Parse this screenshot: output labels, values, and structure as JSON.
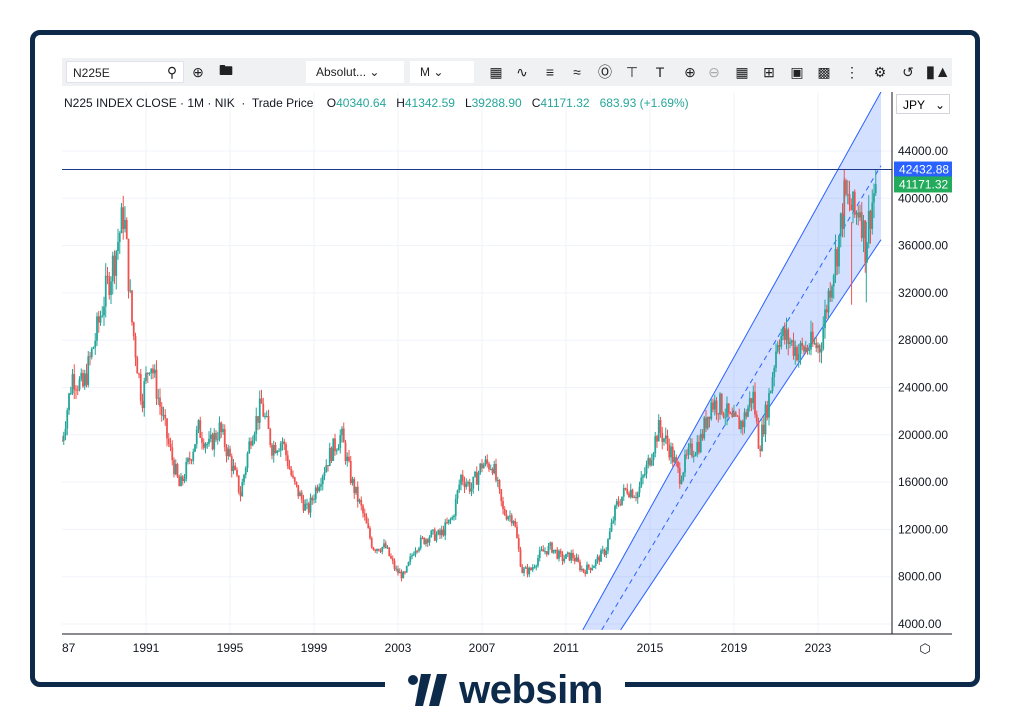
{
  "toolbar": {
    "symbol": "N225E",
    "scale_mode": "Absolut...",
    "interval": "M"
  },
  "legend": {
    "title": "N225 INDEX CLOSE · 1M · NIK",
    "price_type": "Trade Price",
    "o_label": "O",
    "o_value": "40340.64",
    "h_label": "H",
    "h_value": "41342.59",
    "l_label": "L",
    "l_value": "39288.90",
    "c_label": "C",
    "c_value": "41171.32",
    "change": "683.93 (+1.69%)"
  },
  "currency": "JPY",
  "brand": {
    "name": "websim"
  },
  "colors": {
    "up": "#26a69a",
    "down": "#ef5350",
    "channel": "#2962ff",
    "hline": "#1e3a8a",
    "badge_blue": "#2962ff",
    "badge_green": "#22ab5a",
    "frame": "#0d2a4a"
  },
  "chart_data": {
    "type": "candlestick",
    "x_ticks": [
      "87",
      "1991",
      "1995",
      "1999",
      "2003",
      "2007",
      "2011",
      "2015",
      "2019",
      "2023"
    ],
    "y_ticks": [
      "44000.00",
      "40000.00",
      "36000.00",
      "32000.00",
      "28000.00",
      "24000.00",
      "20000.00",
      "16000.00",
      "12000.00",
      "8000.00",
      "4000.00"
    ],
    "ylim": [
      3500,
      48000
    ],
    "xlim": [
      1987.0,
      2026.0
    ],
    "horizontal_line": {
      "value": 42432.88,
      "label": "42432.88"
    },
    "last_price": {
      "value": 41171.32,
      "label": "41171.32"
    },
    "series_closes": [
      [
        1987.0,
        19500
      ],
      [
        1987.5,
        25000
      ],
      [
        1988.0,
        24000
      ],
      [
        1988.5,
        27500
      ],
      [
        1989.0,
        31500
      ],
      [
        1989.5,
        35000
      ],
      [
        1989.95,
        38900
      ],
      [
        1990.3,
        30000
      ],
      [
        1990.8,
        23000
      ],
      [
        1991.2,
        26500
      ],
      [
        1991.6,
        23000
      ],
      [
        1992.1,
        19000
      ],
      [
        1992.6,
        15500
      ],
      [
        1993.0,
        17500
      ],
      [
        1993.5,
        20500
      ],
      [
        1994.0,
        19000
      ],
      [
        1994.5,
        20500
      ],
      [
        1995.0,
        18000
      ],
      [
        1995.5,
        15000
      ],
      [
        1996.0,
        20000
      ],
      [
        1996.5,
        22500
      ],
      [
        1997.0,
        19000
      ],
      [
        1997.5,
        19500
      ],
      [
        1998.0,
        16000
      ],
      [
        1998.7,
        13500
      ],
      [
        1999.2,
        16000
      ],
      [
        1999.8,
        18500
      ],
      [
        2000.3,
        20000
      ],
      [
        2000.8,
        16000
      ],
      [
        2001.3,
        13500
      ],
      [
        2001.8,
        10500
      ],
      [
        2002.4,
        10500
      ],
      [
        2002.9,
        8500
      ],
      [
        2003.3,
        8000
      ],
      [
        2003.8,
        10500
      ],
      [
        2004.5,
        11500
      ],
      [
        2005.0,
        11500
      ],
      [
        2005.6,
        13000
      ],
      [
        2006.0,
        16500
      ],
      [
        2006.5,
        15500
      ],
      [
        2007.0,
        17500
      ],
      [
        2007.5,
        17500
      ],
      [
        2008.0,
        13500
      ],
      [
        2008.5,
        13000
      ],
      [
        2008.9,
        8500
      ],
      [
        2009.3,
        8500
      ],
      [
        2009.8,
        10000
      ],
      [
        2010.3,
        10500
      ],
      [
        2010.8,
        9500
      ],
      [
        2011.3,
        9800
      ],
      [
        2011.8,
        8500
      ],
      [
        2012.3,
        9000
      ],
      [
        2012.9,
        10300
      ],
      [
        2013.4,
        14000
      ],
      [
        2013.9,
        15500
      ],
      [
        2014.4,
        15000
      ],
      [
        2014.9,
        17500
      ],
      [
        2015.4,
        20500
      ],
      [
        2015.9,
        19000
      ],
      [
        2016.4,
        16500
      ],
      [
        2016.9,
        18500
      ],
      [
        2017.4,
        19500
      ],
      [
        2017.9,
        22700
      ],
      [
        2018.4,
        22500
      ],
      [
        2018.9,
        21000
      ],
      [
        2019.4,
        21000
      ],
      [
        2019.9,
        23500
      ],
      [
        2020.2,
        19000
      ],
      [
        2020.7,
        23500
      ],
      [
        2021.1,
        28500
      ],
      [
        2021.6,
        28000
      ],
      [
        2022.1,
        27000
      ],
      [
        2022.6,
        27500
      ],
      [
        2023.1,
        27500
      ],
      [
        2023.6,
        33000
      ],
      [
        2024.0,
        36500
      ],
      [
        2024.25,
        40000
      ],
      [
        2024.5,
        39500
      ],
      [
        2024.75,
        38500
      ],
      [
        2025.0,
        39500
      ],
      [
        2025.25,
        36000
      ],
      [
        2025.5,
        39000
      ],
      [
        2025.75,
        41171.32
      ]
    ],
    "channel": {
      "upper_start": [
        2011.8,
        3500
      ],
      "upper_end": [
        2026.0,
        49000
      ],
      "lower_start": [
        2013.6,
        3500
      ],
      "lower_end": [
        2026.0,
        36500
      ]
    }
  }
}
